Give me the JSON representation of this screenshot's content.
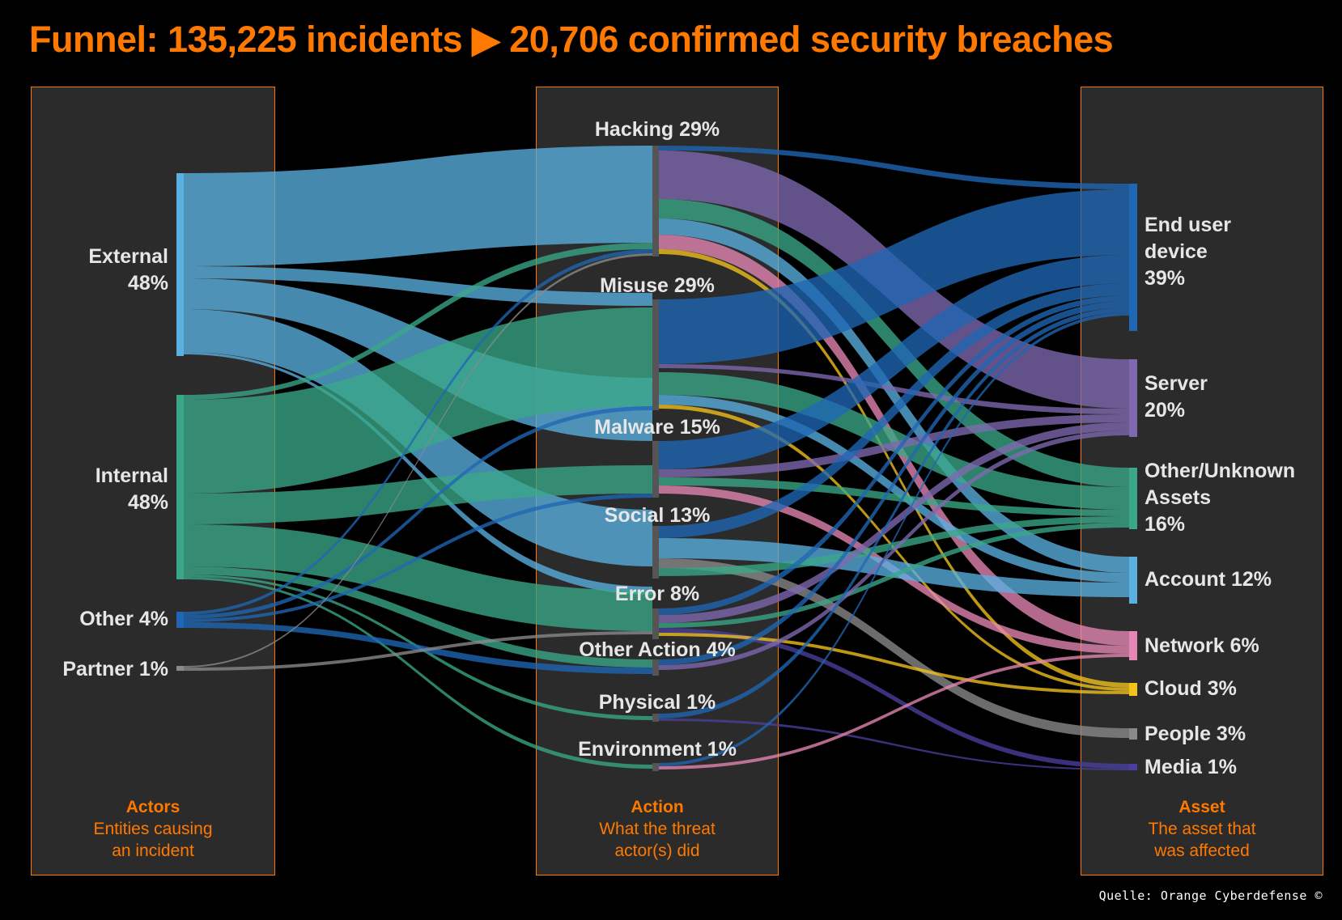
{
  "title": "Funnel: 135,225 incidents ▶ 20,706 confirmed security breaches",
  "credit": "Quelle: Orange Cyberdefense ©",
  "columns": {
    "actors": {
      "title": "Actors",
      "line1": "Entities causing",
      "line2": "an incident"
    },
    "action": {
      "title": "Action",
      "line1": "What the threat",
      "line2": "actor(s) did"
    },
    "asset": {
      "title": "Asset",
      "line1": "The asset that",
      "line2": "was affected"
    }
  },
  "actors": {
    "external": {
      "name": "External",
      "pct": "48%"
    },
    "internal": {
      "name": "Internal",
      "pct": "48%"
    },
    "other": "Other 4%",
    "partner": "Partner 1%"
  },
  "actions": {
    "hacking": "Hacking 29%",
    "misuse": "Misuse 29%",
    "malware": "Malware 15%",
    "social": "Social 13%",
    "error": "Error 8%",
    "other": "Other Action 4%",
    "physical": "Physical 1%",
    "environment": "Environment 1%"
  },
  "assets": {
    "enduser": {
      "line1": "End user",
      "line2": "device",
      "line3": "39%"
    },
    "server": {
      "line1": "Server",
      "line2": "20%"
    },
    "other": {
      "line1": "Other/Unknown",
      "line2": "Assets",
      "line3": "16%"
    },
    "account": "Account 12%",
    "network": "Network 6%",
    "cloud": "Cloud 3%",
    "people": "People 3%",
    "media": "Media 1%"
  },
  "colors": {
    "accent": "#ff7900",
    "external": "#5ab0e0",
    "internal": "#3aa888",
    "other_actor": "#1f67b5",
    "partner": "#8a8a8a",
    "enduser": "#1f67b5",
    "server": "#7e69b0",
    "other_asset": "#3aa888",
    "account": "#5ab0e0",
    "network": "#e587b4",
    "cloud": "#f2c21b",
    "people": "#8a8a8a",
    "media": "#4a3f9e"
  }
}
